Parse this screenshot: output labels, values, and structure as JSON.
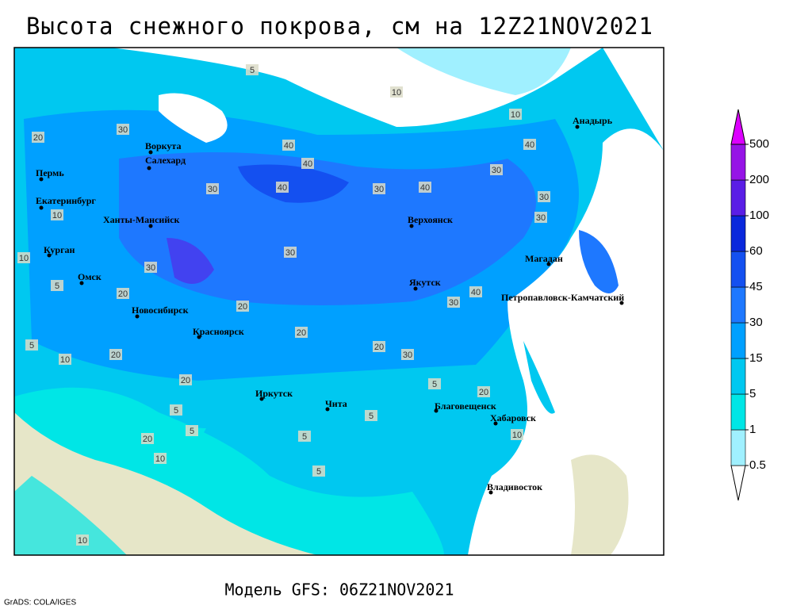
{
  "title": "Высота снежного покрова, см на 12Z21NOV2021",
  "model": "Модель GFS: 06Z21NOV2021",
  "credit": "GrADS: COLA/IGES",
  "colorbar": {
    "levels": [
      0.5,
      1,
      5,
      15,
      30,
      45,
      60,
      100,
      200,
      500
    ],
    "colors": [
      "#ffffff",
      "#a0f0ff",
      "#00e6e6",
      "#00c8f0",
      "#00a0ff",
      "#1e78ff",
      "#1450f0",
      "#0a28dc",
      "#5a1ee6",
      "#9614e6",
      "#dc00ff"
    ]
  },
  "cities": [
    "Анадырь",
    "Воркута",
    "Салехард",
    "Пермь",
    "Екатеринбург",
    "Ханты-Мансийск",
    "Верхоянск",
    "Курган",
    "Магадан",
    "Омск",
    "Якутск",
    "Петропавловск-Камчатский",
    "Новосибирск",
    "Красноярск",
    "Иркутск",
    "Чита",
    "Благовещенск",
    "Хабаровск",
    "Владивосток"
  ],
  "contour_labels": [
    "10",
    "5",
    "10",
    "20",
    "30",
    "40",
    "40",
    "40",
    "30",
    "40",
    "30",
    "30",
    "40",
    "30",
    "30",
    "10",
    "10",
    "5",
    "20",
    "30",
    "30",
    "40",
    "30",
    "20",
    "20",
    "30",
    "20",
    "20",
    "5",
    "10",
    "20",
    "20",
    "5",
    "10",
    "5",
    "5",
    "5",
    "5",
    "20",
    "10",
    "5",
    "10"
  ]
}
